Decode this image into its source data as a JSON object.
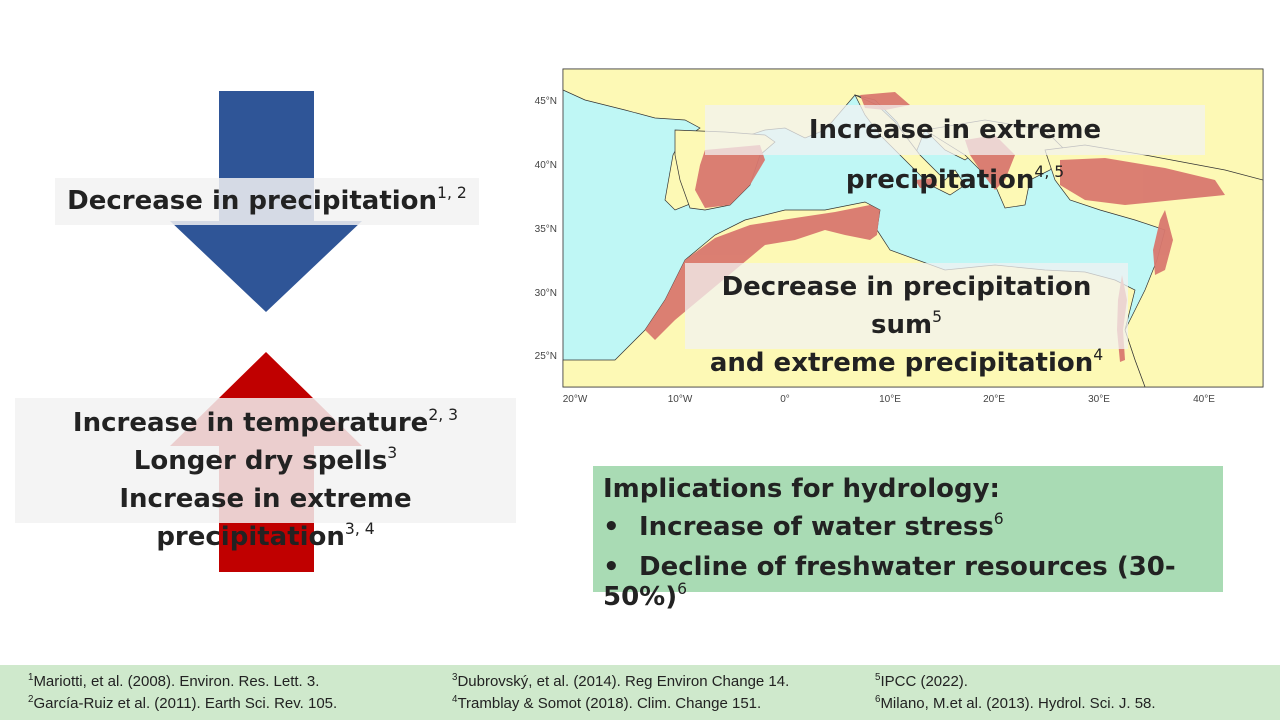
{
  "left": {
    "decrease_label": "Decrease in precipitation",
    "decrease_sup": "1, 2",
    "increase_lines": [
      {
        "text": "Increase in temperature",
        "sup": "2, 3"
      },
      {
        "text": "Longer dry spells",
        "sup": "3"
      },
      {
        "text": "Increase in extreme precipitation",
        "sup": "3, 4"
      }
    ],
    "colors": {
      "down_arrow": "#2f5597",
      "up_arrow": "#c00000"
    }
  },
  "map": {
    "overlay_top": {
      "text": "Increase in extreme precipitation",
      "sup": "4, 5"
    },
    "overlay_bottom_line1": {
      "text": "Decrease in precipitation sum",
      "sup": "5"
    },
    "overlay_bottom_line2": {
      "text": "and extreme precipitation",
      "sup": "4"
    },
    "lat_labels": [
      "45°N",
      "40°N",
      "35°N",
      "30°N",
      "25°N"
    ],
    "lon_labels": [
      "20°W",
      "10°W",
      "0°",
      "10°E",
      "20°E",
      "30°E",
      "40°E"
    ],
    "colors": {
      "sea": "#bff7f5",
      "land": "#fdf9b5",
      "hotspot": "#d9786f",
      "border": "#333333"
    }
  },
  "implications": {
    "title": "Implications for hydrology:",
    "items": [
      {
        "text": "Increase of water stress",
        "sup": "6"
      },
      {
        "text": "Decline of freshwater resources (30-50%)",
        "sup": "6"
      }
    ],
    "bullet": "•",
    "color": "#a9dbb4"
  },
  "references": [
    {
      "sup": "1",
      "text": "Mariotti, et al. (2008). Environ. Res. Lett. 3."
    },
    {
      "sup": "2",
      "text": "García-Ruiz et al. (2011). Earth Sci. Rev. 105."
    },
    {
      "sup": "3",
      "text": "Dubrovský, et al. (2014). Reg Environ Change 14."
    },
    {
      "sup": "4",
      "text": "Tramblay & Somot (2018). Clim. Change 151."
    },
    {
      "sup": "5",
      "text": "IPCC (2022)."
    },
    {
      "sup": "6",
      "text": "Milano, M.et al. (2013). Hydrol. Sci. J. 58."
    }
  ]
}
